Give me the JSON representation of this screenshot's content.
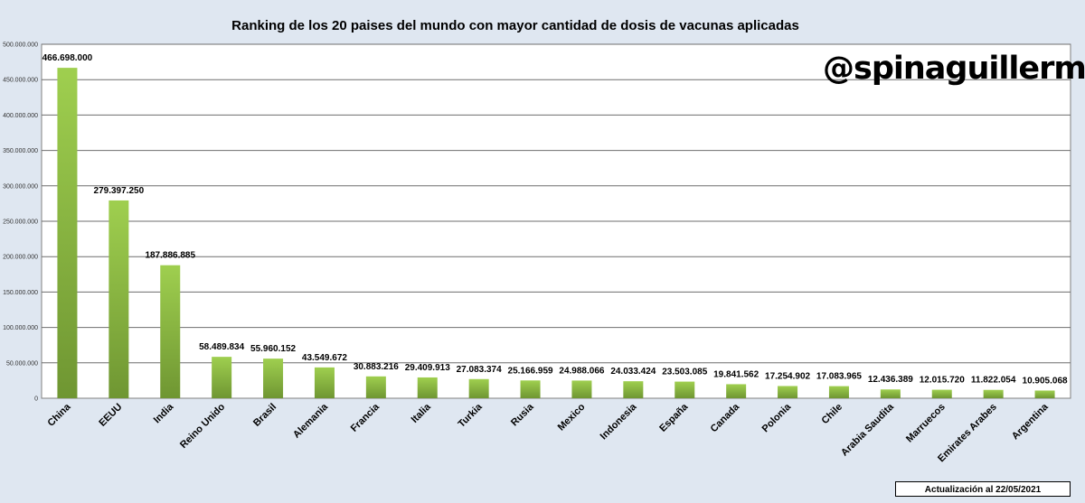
{
  "chart_data": {
    "type": "bar",
    "title": "Ranking de los 20 paises del mundo con mayor cantidad de  dosis de vacunas aplicadas",
    "categories": [
      "China",
      "EEUU",
      "India",
      "Reino Unido",
      "Brasil",
      "Alemania",
      "Francia",
      "Italia",
      "Turkia",
      "Rusia",
      "Mexico",
      "Indonesia",
      "España",
      "Canada",
      "Polonia",
      "Chile",
      "Arabia Saudita",
      "Marruecos",
      "Emirates Arabes",
      "Argentina"
    ],
    "values": [
      466698000,
      279397250,
      187886885,
      58489834,
      55960152,
      43549672,
      30883216,
      29409913,
      27083374,
      25166959,
      24988066,
      24033424,
      23503085,
      19841562,
      17254902,
      17083965,
      12436389,
      12015720,
      11822054,
      10905068
    ],
    "data_labels": [
      "466.698.000",
      "279.397.250",
      "187.886.885",
      "58.489.834",
      "55.960.152",
      "43.549.672",
      "30.883.216",
      "29.409.913",
      "27.083.374",
      "25.166.959",
      "24.988.066",
      "24.033.424",
      "23.503.085",
      "19.841.562",
      "17.254.902",
      "17.083.965",
      "12.436.389",
      "12.015.720",
      "11.822.054",
      "10.905.068"
    ],
    "ylim": [
      0,
      500000000
    ],
    "yticks": [
      0,
      50000000,
      100000000,
      150000000,
      200000000,
      250000000,
      300000000,
      350000000,
      400000000,
      450000000,
      500000000
    ],
    "ytick_labels": [
      "0",
      "50.000.000",
      "100.000.000",
      "150.000.000",
      "200.000.000",
      "250.000.000",
      "300.000.000",
      "350.000.000",
      "400.000.000",
      "450.000.000",
      "500.000.000"
    ],
    "grid": true,
    "colors": {
      "bar_top": "#9fcf4f",
      "bar_bottom": "#6f9632",
      "grid": "#6e6e6e"
    }
  },
  "watermark": "@spinaguillermo",
  "footer": "Actualización  al 22/05/2021"
}
